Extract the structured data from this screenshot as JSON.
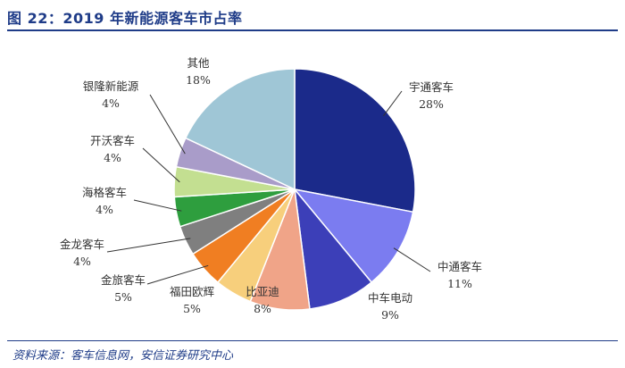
{
  "header": {
    "title": "图 22：2019 年新能源客车市占率"
  },
  "footer": {
    "source": "资料来源：客车信息网，安信证券研究中心"
  },
  "chart_data": {
    "type": "pie",
    "title": "图 22：2019 年新能源客车市占率",
    "unit": "%",
    "slices": [
      {
        "name": "宇通客车",
        "value": 28,
        "label": "28%",
        "color": "#1b2a8a"
      },
      {
        "name": "中通客车",
        "value": 11,
        "label": "11%",
        "color": "#7b7cf0"
      },
      {
        "name": "中车电动",
        "value": 9,
        "label": "9%",
        "color": "#3c3fb8"
      },
      {
        "name": "比亚迪",
        "value": 8,
        "label": "8%",
        "color": "#f0a488"
      },
      {
        "name": "福田欧辉",
        "value": 5,
        "label": "5%",
        "color": "#f7cf7c"
      },
      {
        "name": "金旅客车",
        "value": 5,
        "label": "5%",
        "color": "#f07e22"
      },
      {
        "name": "金龙客车",
        "value": 4,
        "label": "4%",
        "color": "#7f7f7f"
      },
      {
        "name": "海格客车",
        "value": 4,
        "label": "4%",
        "color": "#2e9e3e"
      },
      {
        "name": "开沃客车",
        "value": 4,
        "label": "4%",
        "color": "#c3df91"
      },
      {
        "name": "银隆新能源",
        "value": 4,
        "label": "4%",
        "color": "#a99cc9"
      },
      {
        "name": "其他",
        "value": 18,
        "label": "18%",
        "color": "#9fc6d6"
      }
    ]
  }
}
